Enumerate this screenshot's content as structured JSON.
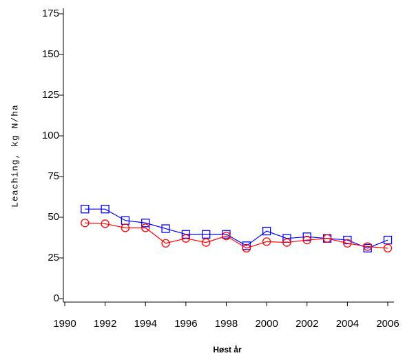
{
  "chart_data": {
    "type": "line",
    "x": [
      1991,
      1992,
      1993,
      1994,
      1995,
      1996,
      1997,
      1998,
      1999,
      2000,
      2001,
      2002,
      2003,
      2004,
      2005,
      2006
    ],
    "series": [
      {
        "color": "#0000ff",
        "marker": "square",
        "values": [
          55,
          55,
          48,
          46.5,
          43,
          39.5,
          39.5,
          39.5,
          32.5,
          41.5,
          37,
          38,
          37,
          36,
          31,
          36
        ]
      },
      {
        "color": "#ff0000",
        "marker": "circle",
        "values": [
          46.5,
          46,
          43.5,
          43.5,
          34,
          37,
          34.5,
          38.5,
          31,
          35,
          34.5,
          36,
          37,
          34,
          32,
          31
        ]
      }
    ],
    "xlabel": "Høst år",
    "ylabel": "Leaching, kg N/ha",
    "xlim": [
      1990,
      2006
    ],
    "xticks": [
      1990,
      1992,
      1994,
      1996,
      1998,
      2000,
      2002,
      2004,
      2006
    ],
    "ylim": [
      0,
      175
    ],
    "yticks": [
      0,
      25,
      50,
      75,
      100,
      125,
      150,
      175
    ]
  }
}
